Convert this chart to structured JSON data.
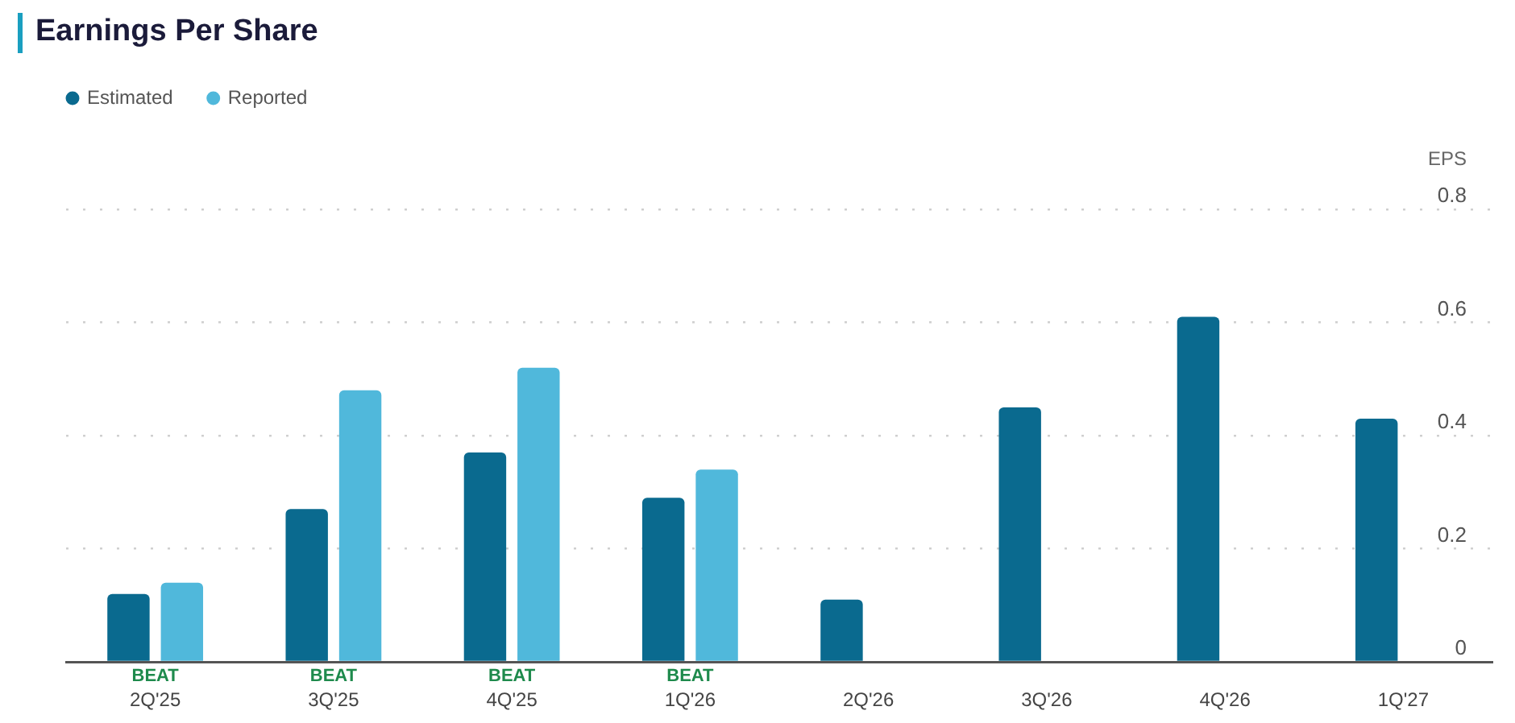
{
  "chart_data": {
    "type": "bar",
    "title": "Earnings Per Share",
    "ylabel": "EPS",
    "categories": [
      "2Q'25",
      "3Q'25",
      "4Q'25",
      "1Q'26",
      "2Q'26",
      "3Q'26",
      "4Q'26",
      "1Q'27"
    ],
    "series": [
      {
        "name": "Estimated",
        "color": "#0a6a8f",
        "values": [
          0.12,
          0.27,
          0.37,
          0.29,
          0.11,
          0.45,
          0.61,
          0.43
        ]
      },
      {
        "name": "Reported",
        "color": "#50b8db",
        "values": [
          0.14,
          0.48,
          0.52,
          0.34,
          null,
          null,
          null,
          null
        ]
      }
    ],
    "ylim": [
      0,
      0.8
    ],
    "yticks": [
      0,
      0.2,
      0.4,
      0.6,
      0.8
    ],
    "grid": "y",
    "legend": "top left",
    "annotations": [
      "BEAT",
      "BEAT",
      "BEAT",
      "BEAT"
    ]
  }
}
